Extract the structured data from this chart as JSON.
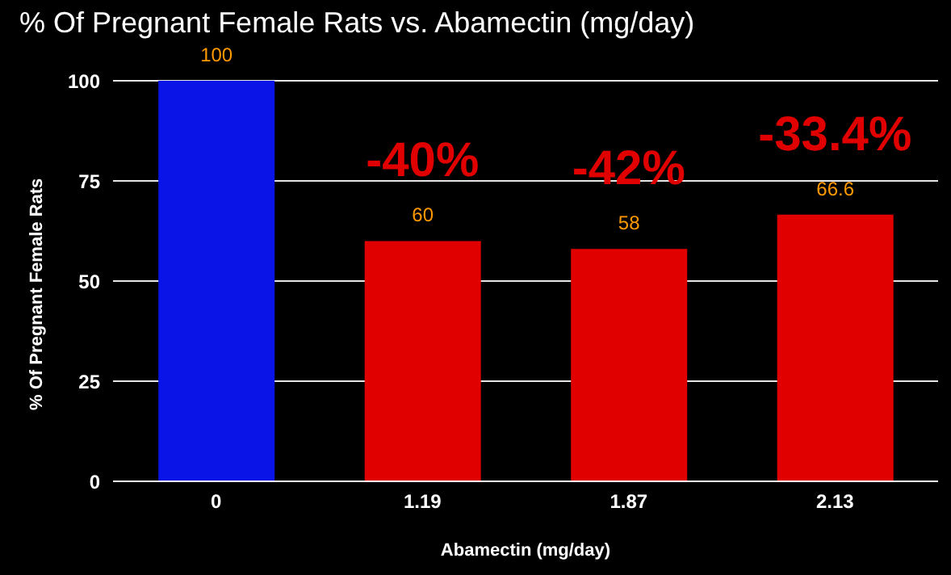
{
  "chart_data": {
    "type": "bar",
    "title": "% Of Pregnant Female Rats vs. Abamectin (mg/day)",
    "xlabel": "Abamectin (mg/day)",
    "ylabel": "% Of Pregnant Female Rats",
    "categories": [
      "0",
      "1.19",
      "1.87",
      "2.13"
    ],
    "values": [
      100,
      60,
      58,
      66.6
    ],
    "colors": [
      "#0a14e6",
      "#e00000",
      "#e00000",
      "#e00000"
    ],
    "ylim": [
      0,
      100
    ],
    "yticks": [
      0,
      25,
      50,
      75,
      100
    ],
    "grid": "y",
    "legend": false,
    "data_labels": true,
    "annotations": [
      "-40%",
      "-42%",
      "-33.4%"
    ]
  }
}
